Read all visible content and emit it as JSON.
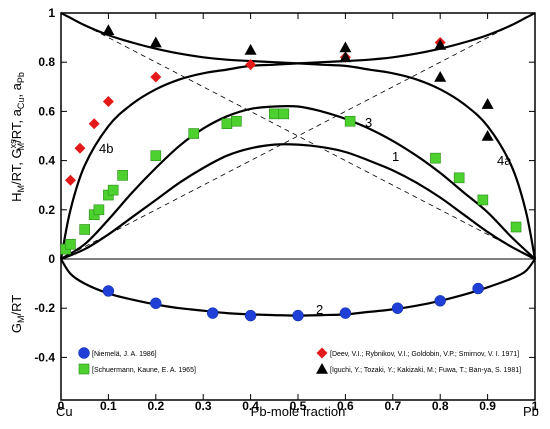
{
  "chart_data": {
    "type": "scatter",
    "xlabel": "Pb-mole fraction",
    "ylabel_top": "H_M/RT, G_M^xs/RT, a_Cu, a_Pb",
    "ylabel_bottom": "G_M/RT",
    "xlim": [
      0,
      1
    ],
    "ylim": [
      -0.5,
      1.0
    ],
    "x_ticks": [
      "0",
      "0.1",
      "0.2",
      "0.3",
      "0.4",
      "0.5",
      "0.6",
      "0.7",
      "0.8",
      "0.9",
      "1"
    ],
    "x_tick_values": [
      0,
      0.1,
      0.2,
      0.3,
      0.4,
      0.5,
      0.6,
      0.7,
      0.8,
      0.9,
      1
    ],
    "y_ticks": [
      "1",
      "0.8",
      "0.6",
      "0.4",
      "0.2",
      "0",
      "-0.2",
      "-0.4"
    ],
    "y_tick_values": [
      1,
      0.8,
      0.6,
      0.4,
      0.2,
      0,
      -0.2,
      -0.4
    ],
    "end_labels": {
      "left": "Cu",
      "right": "Pb"
    },
    "grid": false,
    "curve_labels": [
      "1",
      "2",
      "3",
      "4a",
      "4b"
    ],
    "series": [
      {
        "name": "[Niemelä, J. A. 1986]",
        "marker": "circle",
        "color": "#1f3fd6",
        "points": [
          [
            0.1,
            -0.13
          ],
          [
            0.2,
            -0.18
          ],
          [
            0.32,
            -0.22
          ],
          [
            0.4,
            -0.23
          ],
          [
            0.5,
            -0.23
          ],
          [
            0.6,
            -0.22
          ],
          [
            0.71,
            -0.2
          ],
          [
            0.8,
            -0.17
          ],
          [
            0.88,
            -0.12
          ]
        ]
      },
      {
        "name": "[Schuermann, Kaune, E. A. 1965]",
        "marker": "square",
        "color": "#4cd12f",
        "points": [
          [
            0.01,
            0.04
          ],
          [
            0.02,
            0.06
          ],
          [
            0.05,
            0.12
          ],
          [
            0.07,
            0.18
          ],
          [
            0.08,
            0.2
          ],
          [
            0.1,
            0.26
          ],
          [
            0.11,
            0.28
          ],
          [
            0.13,
            0.34
          ],
          [
            0.2,
            0.42
          ],
          [
            0.28,
            0.51
          ],
          [
            0.35,
            0.55
          ],
          [
            0.37,
            0.56
          ],
          [
            0.45,
            0.59
          ],
          [
            0.47,
            0.59
          ],
          [
            0.61,
            0.56
          ],
          [
            0.79,
            0.41
          ],
          [
            0.84,
            0.33
          ],
          [
            0.89,
            0.24
          ],
          [
            0.96,
            0.13
          ]
        ]
      },
      {
        "name": "[Deev, V.I.; Rybnikov, V.I.; Goldobin, V.P.; Smirnov, V. I. 1971]",
        "marker": "diamond",
        "color": "#e41a1a",
        "points": [
          [
            0.02,
            0.32
          ],
          [
            0.04,
            0.45
          ],
          [
            0.07,
            0.55
          ],
          [
            0.1,
            0.64
          ],
          [
            0.2,
            0.74
          ],
          [
            0.4,
            0.79
          ],
          [
            0.6,
            0.82
          ],
          [
            0.8,
            0.88
          ]
        ]
      },
      {
        "name": "[Iguchi, Y.; Tozaki, Y.; Kakizaki, M.; Fuwa, T.; Ban-ya, S. 1981]",
        "marker": "triangle",
        "color": "#000000",
        "points": [
          [
            0.1,
            0.93
          ],
          [
            0.2,
            0.88
          ],
          [
            0.4,
            0.85
          ],
          [
            0.6,
            0.86
          ],
          [
            0.6,
            0.82
          ],
          [
            0.8,
            0.74
          ],
          [
            0.8,
            0.87
          ],
          [
            0.9,
            0.63
          ],
          [
            0.9,
            0.5
          ]
        ]
      }
    ],
    "lines": [
      {
        "name": "1",
        "x": [
          0,
          0.05,
          0.1,
          0.15,
          0.2,
          0.25,
          0.3,
          0.35,
          0.4,
          0.45,
          0.5,
          0.55,
          0.6,
          0.65,
          0.7,
          0.75,
          0.8,
          0.85,
          0.9,
          0.95,
          1
        ],
        "y": [
          0,
          0.04,
          0.1,
          0.17,
          0.24,
          0.31,
          0.37,
          0.42,
          0.45,
          0.465,
          0.465,
          0.455,
          0.435,
          0.4,
          0.36,
          0.31,
          0.25,
          0.18,
          0.11,
          0.05,
          0
        ]
      },
      {
        "name": "3",
        "x": [
          0,
          0.05,
          0.1,
          0.15,
          0.2,
          0.25,
          0.3,
          0.35,
          0.4,
          0.45,
          0.5,
          0.55,
          0.6,
          0.65,
          0.7,
          0.75,
          0.8,
          0.85,
          0.9,
          0.95,
          1
        ],
        "y": [
          0,
          0.06,
          0.16,
          0.27,
          0.37,
          0.46,
          0.53,
          0.58,
          0.61,
          0.62,
          0.62,
          0.6,
          0.57,
          0.53,
          0.48,
          0.42,
          0.35,
          0.27,
          0.19,
          0.09,
          0
        ]
      },
      {
        "name": "2",
        "x": [
          0,
          0.02,
          0.05,
          0.1,
          0.15,
          0.2,
          0.25,
          0.3,
          0.35,
          0.4,
          0.45,
          0.5,
          0.55,
          0.6,
          0.65,
          0.7,
          0.75,
          0.8,
          0.85,
          0.9,
          0.95,
          0.98,
          1
        ],
        "y": [
          0,
          -0.06,
          -0.1,
          -0.14,
          -0.165,
          -0.185,
          -0.2,
          -0.21,
          -0.22,
          -0.225,
          -0.228,
          -0.23,
          -0.228,
          -0.225,
          -0.215,
          -0.205,
          -0.19,
          -0.17,
          -0.145,
          -0.115,
          -0.08,
          -0.05,
          0
        ]
      },
      {
        "name": "4b",
        "x": [
          0,
          0.02,
          0.05,
          0.1,
          0.15,
          0.2,
          0.25,
          0.3,
          0.35,
          0.4,
          0.45,
          0.5,
          0.55,
          0.6,
          0.65,
          0.7,
          0.75,
          0.8,
          0.85,
          0.9,
          0.95,
          0.98,
          1
        ],
        "y": [
          0,
          0.2,
          0.38,
          0.54,
          0.63,
          0.69,
          0.73,
          0.755,
          0.77,
          0.785,
          0.79,
          0.795,
          0.8,
          0.805,
          0.81,
          0.82,
          0.835,
          0.855,
          0.88,
          0.91,
          0.95,
          0.98,
          1
        ]
      },
      {
        "name": "4a",
        "x": [
          0,
          0.02,
          0.05,
          0.1,
          0.15,
          0.2,
          0.25,
          0.3,
          0.35,
          0.4,
          0.45,
          0.5,
          0.55,
          0.6,
          0.65,
          0.7,
          0.75,
          0.8,
          0.85,
          0.9,
          0.95,
          0.98,
          1
        ],
        "y": [
          1,
          0.98,
          0.95,
          0.91,
          0.88,
          0.855,
          0.835,
          0.82,
          0.81,
          0.805,
          0.8,
          0.795,
          0.79,
          0.785,
          0.77,
          0.755,
          0.73,
          0.69,
          0.63,
          0.54,
          0.38,
          0.2,
          0
        ]
      }
    ],
    "dashed_lines": [
      {
        "x": [
          0,
          1
        ],
        "y": [
          1,
          0
        ]
      },
      {
        "x": [
          0,
          1
        ],
        "y": [
          0,
          1
        ]
      }
    ]
  }
}
